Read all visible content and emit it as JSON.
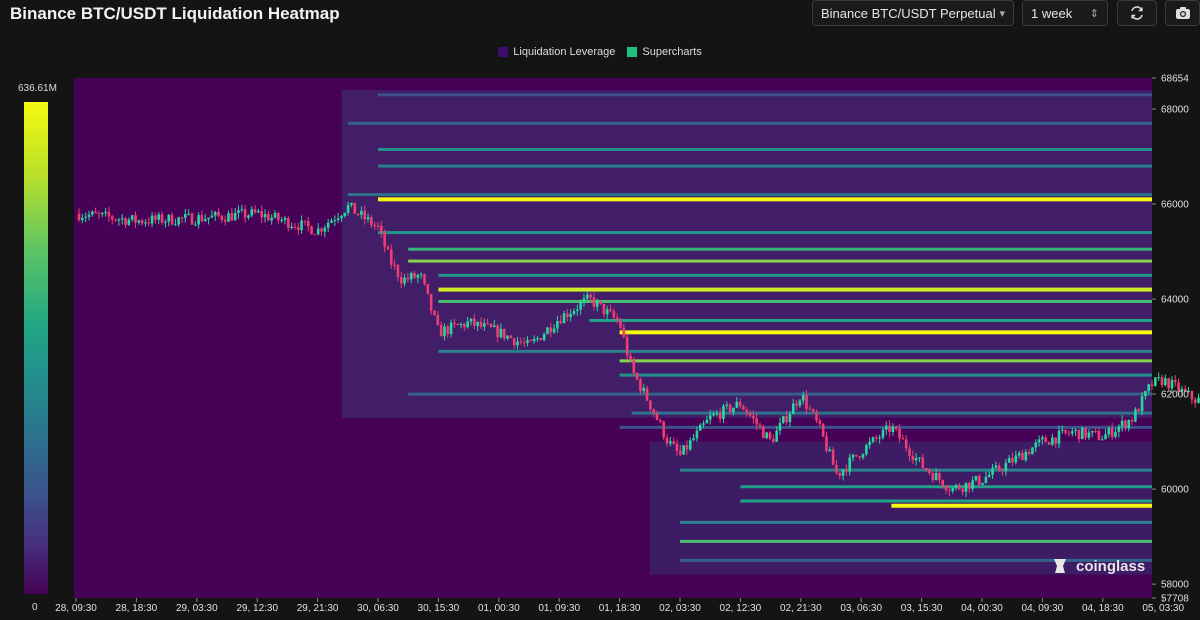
{
  "header": {
    "title": "Binance BTC/USDT Liquidation Heatmap",
    "pair_select": "Binance BTC/USDT Perpetual",
    "range_select": "1 week"
  },
  "watermark": "coinglass",
  "colorbar": {
    "max_label": "636.61M",
    "min_label": "0"
  },
  "colors": {
    "background": "#141414",
    "heat_low": "#440154",
    "heat_high": "#f6f90f",
    "candle_up": "#26d7a0",
    "candle_down": "#ec3e71"
  },
  "chart_data": {
    "type": "heatmap",
    "legend": [
      {
        "name": "Liquidation Leverage",
        "color": "#3b0f6b"
      },
      {
        "name": "Supercharts",
        "color": "#1fc07f"
      }
    ],
    "legend_position": "top-center",
    "ylim": [
      57708,
      68654
    ],
    "y_ticks": [
      "68654",
      "68000",
      "66000",
      "64000",
      "62000",
      "60000",
      "58000",
      "57708"
    ],
    "x_ticks": [
      "28, 09:30",
      "28, 18:30",
      "29, 03:30",
      "29, 12:30",
      "29, 21:30",
      "30, 06:30",
      "30, 15:30",
      "01, 00:30",
      "01, 09:30",
      "01, 18:30",
      "02, 03:30",
      "02, 12:30",
      "02, 21:30",
      "03, 06:30",
      "03, 15:30",
      "04, 00:30",
      "04, 09:30",
      "04, 18:30",
      "05, 03:30"
    ],
    "price_path": [
      {
        "t": 0,
        "p": 65800
      },
      {
        "t": 1,
        "p": 65650
      },
      {
        "t": 2,
        "p": 65700
      },
      {
        "t": 3,
        "p": 65800
      },
      {
        "t": 4,
        "p": 65450
      },
      {
        "t": 4.5,
        "p": 65950
      },
      {
        "t": 5,
        "p": 65500
      },
      {
        "t": 5.2,
        "p": 64800
      },
      {
        "t": 5.4,
        "p": 64400
      },
      {
        "t": 5.7,
        "p": 64500
      },
      {
        "t": 6,
        "p": 63300
      },
      {
        "t": 6.5,
        "p": 63500
      },
      {
        "t": 7,
        "p": 63300
      },
      {
        "t": 7.5,
        "p": 63000
      },
      {
        "t": 8,
        "p": 63600
      },
      {
        "t": 8.5,
        "p": 64000
      },
      {
        "t": 9,
        "p": 63500
      },
      {
        "t": 9.2,
        "p": 62500
      },
      {
        "t": 9.5,
        "p": 61800
      },
      {
        "t": 9.8,
        "p": 61000
      },
      {
        "t": 10,
        "p": 60700
      },
      {
        "t": 10.5,
        "p": 61500
      },
      {
        "t": 11,
        "p": 61800
      },
      {
        "t": 11.5,
        "p": 61000
      },
      {
        "t": 12,
        "p": 62000
      },
      {
        "t": 12.3,
        "p": 61300
      },
      {
        "t": 12.6,
        "p": 60300
      },
      {
        "t": 13,
        "p": 60800
      },
      {
        "t": 13.5,
        "p": 61300
      },
      {
        "t": 14,
        "p": 60500
      },
      {
        "t": 14.5,
        "p": 60000
      },
      {
        "t": 15,
        "p": 60200
      },
      {
        "t": 15.5,
        "p": 60600
      },
      {
        "t": 16,
        "p": 61000
      },
      {
        "t": 16.5,
        "p": 61200
      },
      {
        "t": 17,
        "p": 61100
      },
      {
        "t": 17.5,
        "p": 61500
      },
      {
        "t": 17.8,
        "p": 62200
      },
      {
        "t": 18,
        "p": 62300
      },
      {
        "t": 18.5,
        "p": 61900
      },
      {
        "t": 18.8,
        "p": 61800
      }
    ],
    "liquidation_bands": [
      {
        "price": 68300,
        "start": 5,
        "intensity": 0.25
      },
      {
        "price": 67700,
        "start": 4.5,
        "intensity": 0.3
      },
      {
        "price": 67150,
        "start": 5,
        "intensity": 0.45
      },
      {
        "price": 66800,
        "start": 5,
        "intensity": 0.4
      },
      {
        "price": 66200,
        "start": 4.5,
        "intensity": 0.35
      },
      {
        "price": 66100,
        "start": 5,
        "intensity": 1.0
      },
      {
        "price": 65400,
        "start": 5,
        "intensity": 0.5
      },
      {
        "price": 65050,
        "start": 5.5,
        "intensity": 0.7
      },
      {
        "price": 64800,
        "start": 5.5,
        "intensity": 0.85
      },
      {
        "price": 64500,
        "start": 6,
        "intensity": 0.5
      },
      {
        "price": 64200,
        "start": 6,
        "intensity": 0.95
      },
      {
        "price": 63950,
        "start": 6,
        "intensity": 0.75
      },
      {
        "price": 63550,
        "start": 8.5,
        "intensity": 0.6
      },
      {
        "price": 63300,
        "start": 9,
        "intensity": 1.0
      },
      {
        "price": 62900,
        "start": 6,
        "intensity": 0.4
      },
      {
        "price": 62700,
        "start": 9,
        "intensity": 0.85
      },
      {
        "price": 62400,
        "start": 9,
        "intensity": 0.45
      },
      {
        "price": 62000,
        "start": 5.5,
        "intensity": 0.3
      },
      {
        "price": 61600,
        "start": 9.2,
        "intensity": 0.35
      },
      {
        "price": 61300,
        "start": 9,
        "intensity": 0.25
      },
      {
        "price": 60400,
        "start": 10,
        "intensity": 0.4
      },
      {
        "price": 60050,
        "start": 11,
        "intensity": 0.55
      },
      {
        "price": 59750,
        "start": 11,
        "intensity": 0.6
      },
      {
        "price": 59650,
        "start": 13.5,
        "intensity": 1.0
      },
      {
        "price": 59300,
        "start": 10,
        "intensity": 0.4
      },
      {
        "price": 58900,
        "start": 10,
        "intensity": 0.75
      },
      {
        "price": 58500,
        "start": 10,
        "intensity": 0.3
      }
    ]
  }
}
